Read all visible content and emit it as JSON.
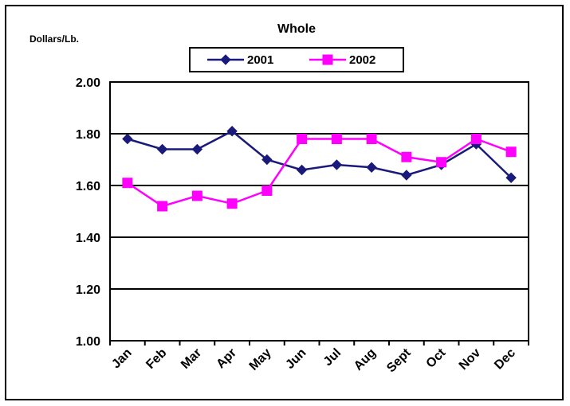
{
  "chart_data": {
    "type": "line",
    "title": "Whole",
    "ylabel": "Dollars/Lb.",
    "xlabel": "",
    "categories": [
      "Jan",
      "Feb",
      "Mar",
      "Apr",
      "May",
      "Jun",
      "Jul",
      "Aug",
      "Sept",
      "Oct",
      "Nov",
      "Dec"
    ],
    "ylim": [
      1.0,
      2.0
    ],
    "yticks": [
      "1.00",
      "1.20",
      "1.40",
      "1.60",
      "1.80",
      "2.00"
    ],
    "grid": true,
    "legend_position": "top",
    "series": [
      {
        "name": "2001",
        "color": "#1a1a7a",
        "marker": "diamond",
        "values": [
          1.78,
          1.74,
          1.74,
          1.81,
          1.7,
          1.66,
          1.68,
          1.67,
          1.64,
          1.68,
          1.76,
          1.63
        ]
      },
      {
        "name": "2002",
        "color": "#ff00ff",
        "marker": "square",
        "values": [
          1.61,
          1.52,
          1.56,
          1.53,
          1.58,
          1.78,
          1.78,
          1.78,
          1.71,
          1.69,
          1.78,
          1.73
        ]
      }
    ]
  }
}
